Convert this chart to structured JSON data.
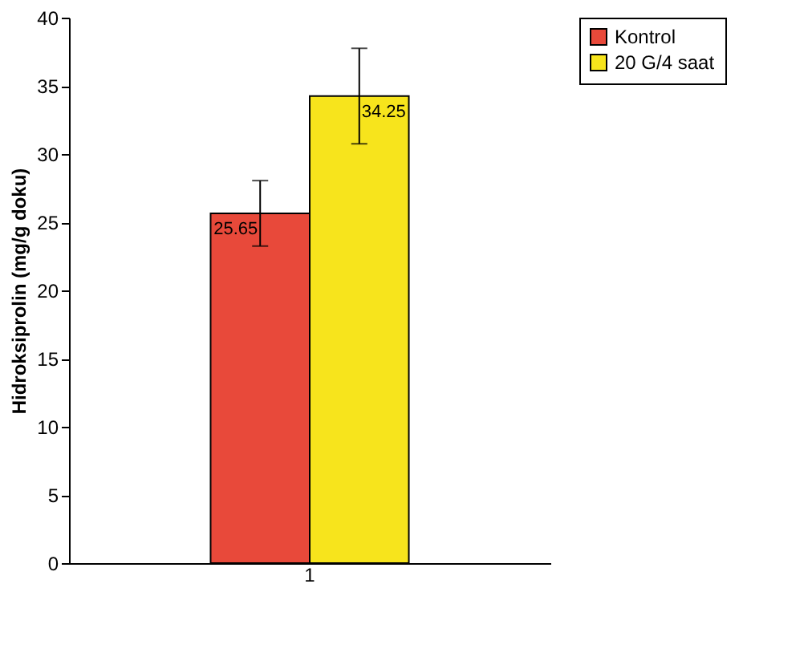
{
  "chart_data": {
    "type": "bar",
    "ylabel": "Hidroksiprolin (mg/g doku)",
    "categories": [
      "1"
    ],
    "series": [
      {
        "name": "Kontrol",
        "color": "#e8493a",
        "values": [
          25.65
        ],
        "errors": [
          2.4
        ]
      },
      {
        "name": "20 G/4 saat",
        "color": "#f7e41c",
        "values": [
          34.25
        ],
        "errors": [
          3.5
        ]
      }
    ],
    "ylim": [
      0,
      40
    ],
    "yticks": [
      0,
      5,
      10,
      15,
      20,
      25,
      30,
      35,
      40
    ],
    "data_labels": true,
    "legend": "right",
    "grid": false
  }
}
